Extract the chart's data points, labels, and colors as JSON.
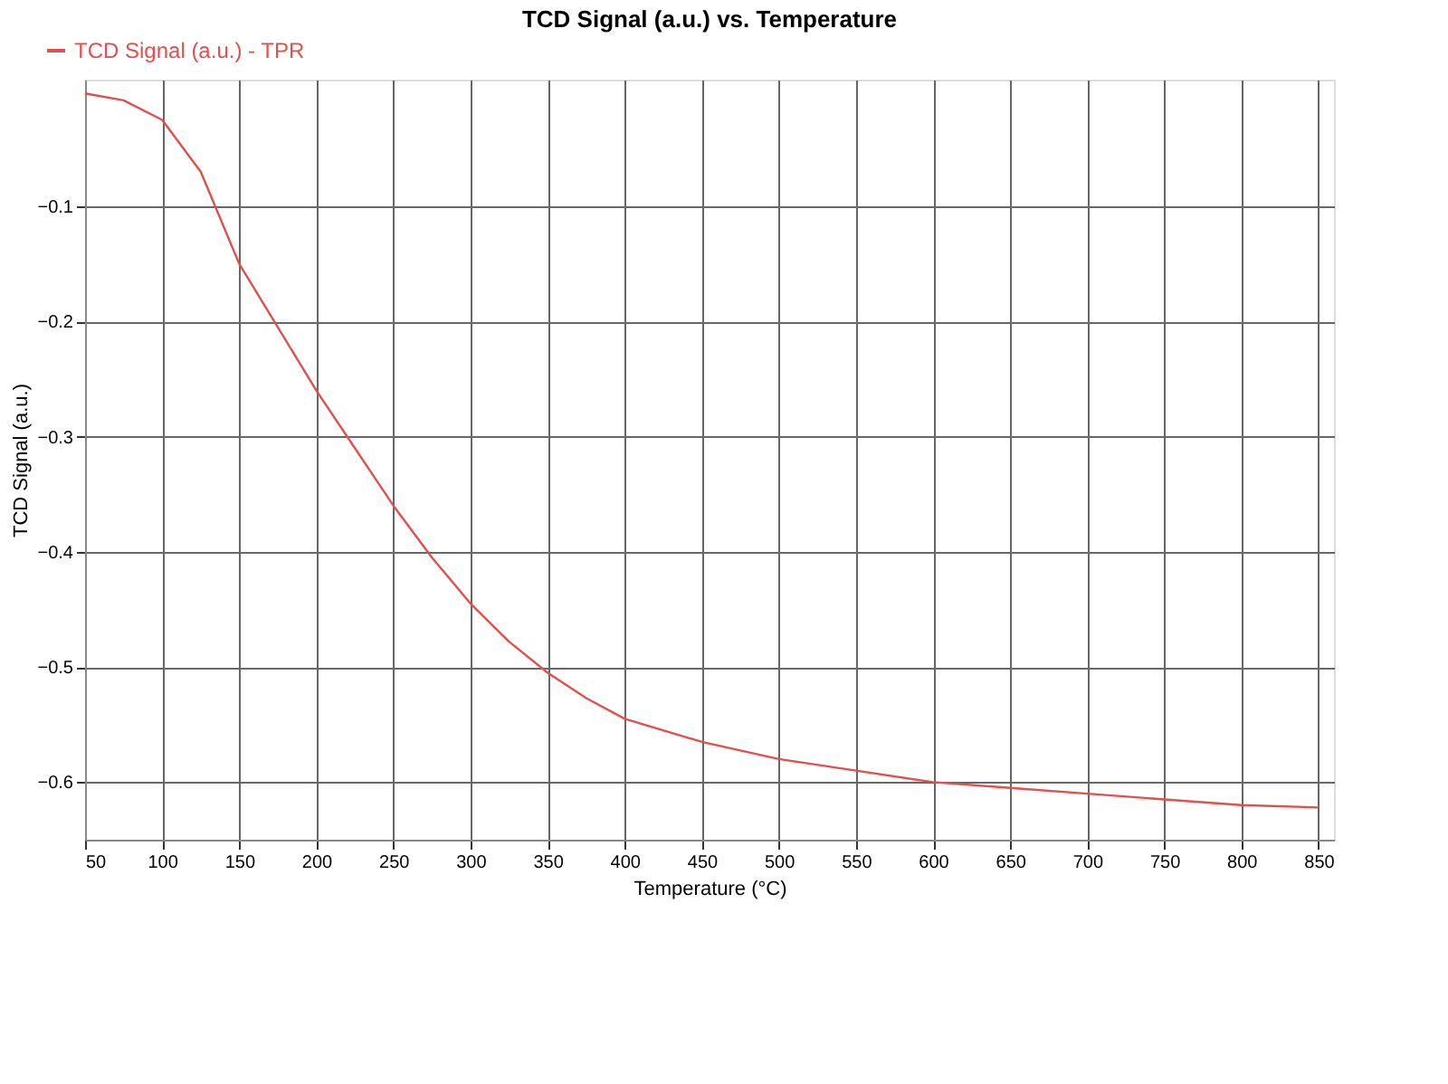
{
  "chart_data": {
    "type": "line",
    "title": "TCD Signal (a.u.) vs. Temperature",
    "xlabel": "Temperature (°C)",
    "ylabel": "TCD Signal (a.u.)",
    "x": [
      50,
      75,
      100,
      125,
      150,
      175,
      200,
      225,
      250,
      275,
      300,
      325,
      350,
      375,
      400,
      450,
      500,
      550,
      600,
      650,
      700,
      750,
      800,
      850
    ],
    "series": [
      {
        "name": "TCD Signal (a.u.) - TPR",
        "color": "#e05050",
        "values": [
          -0.002,
          -0.008,
          -0.025,
          -0.07,
          -0.15,
          -0.205,
          -0.26,
          -0.31,
          -0.36,
          -0.405,
          -0.445,
          -0.478,
          -0.505,
          -0.527,
          -0.545,
          -0.565,
          -0.58,
          -0.59,
          -0.6,
          -0.605,
          -0.61,
          -0.615,
          -0.62,
          -0.622
        ]
      }
    ],
    "xlim": [
      50,
      860
    ],
    "xticks": [
      50,
      100,
      150,
      200,
      250,
      300,
      350,
      400,
      450,
      500,
      550,
      600,
      650,
      700,
      750,
      800,
      850
    ],
    "ylim": [
      -0.65,
      0.01
    ],
    "yticks": [
      -0.6,
      -0.5,
      -0.4,
      -0.3,
      -0.2,
      -0.1
    ],
    "grid": true,
    "legend": "top left",
    "line_style": "solid",
    "marker": "none"
  }
}
